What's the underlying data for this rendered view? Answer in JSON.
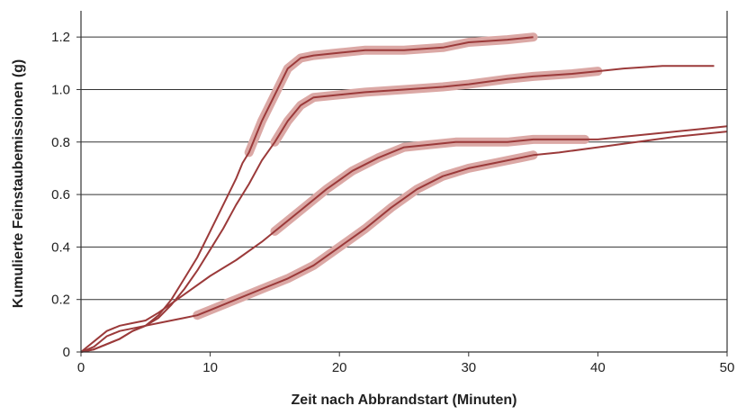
{
  "chart_data": {
    "type": "line",
    "title": "",
    "xlabel": "Zeit nach Abbrandstart (Minuten)",
    "ylabel": "Kumulierte Feinstaubemissionen (g)",
    "xlim": [
      0,
      50
    ],
    "ylim": [
      0,
      1.3
    ],
    "x_ticks": [
      0,
      10,
      20,
      30,
      40,
      50
    ],
    "y_ticks": [
      0,
      0.2,
      0.4,
      0.6,
      0.8,
      1.0,
      1.2
    ],
    "x_tick_labels": [
      "0",
      "10",
      "20",
      "30",
      "40",
      "50"
    ],
    "y_tick_labels": [
      "0",
      "0.2",
      "0.4",
      "0.6",
      "0.8",
      "1.0",
      "1.2"
    ],
    "grid": "horizontal",
    "colors": {
      "line": "#9b3a3a",
      "highlight": "#dba8a5",
      "grid": "#333333",
      "axis": "#333333"
    },
    "series": [
      {
        "x": [
          0,
          1,
          2,
          3,
          4,
          5,
          6,
          7,
          8,
          9,
          10,
          11,
          12,
          12.5,
          13,
          14,
          15,
          16,
          17,
          18,
          20,
          22,
          25,
          28,
          30,
          33,
          35
        ],
        "y": [
          0,
          0.01,
          0.03,
          0.05,
          0.08,
          0.1,
          0.14,
          0.2,
          0.28,
          0.36,
          0.46,
          0.56,
          0.66,
          0.72,
          0.76,
          0.88,
          0.98,
          1.08,
          1.12,
          1.13,
          1.14,
          1.15,
          1.15,
          1.16,
          1.18,
          1.19,
          1.2
        ],
        "highlight_range": [
          13,
          35
        ]
      },
      {
        "x": [
          0,
          1,
          2,
          3,
          4,
          5,
          6,
          7,
          8,
          9,
          10,
          11,
          12,
          13,
          14,
          15,
          16,
          17,
          18,
          20,
          22,
          25,
          28,
          30,
          33,
          35,
          38,
          40,
          42,
          45,
          49
        ],
        "y": [
          0,
          0.01,
          0.03,
          0.05,
          0.08,
          0.1,
          0.13,
          0.18,
          0.24,
          0.31,
          0.39,
          0.47,
          0.56,
          0.64,
          0.73,
          0.8,
          0.88,
          0.94,
          0.97,
          0.98,
          0.99,
          1.0,
          1.01,
          1.02,
          1.04,
          1.05,
          1.06,
          1.07,
          1.08,
          1.09,
          1.09
        ],
        "highlight_range": [
          15,
          41
        ]
      },
      {
        "x": [
          0,
          1,
          2,
          3,
          4,
          5,
          6,
          8,
          10,
          12,
          14,
          15,
          17,
          19,
          21,
          23,
          25,
          27,
          29,
          31,
          33,
          35,
          37,
          39,
          40,
          42,
          44,
          46,
          48,
          50
        ],
        "y": [
          0,
          0.04,
          0.08,
          0.1,
          0.11,
          0.12,
          0.15,
          0.22,
          0.29,
          0.35,
          0.42,
          0.46,
          0.54,
          0.62,
          0.69,
          0.74,
          0.78,
          0.79,
          0.8,
          0.8,
          0.8,
          0.81,
          0.81,
          0.81,
          0.81,
          0.82,
          0.83,
          0.84,
          0.85,
          0.86
        ],
        "highlight_range": [
          15,
          39
        ]
      },
      {
        "x": [
          0,
          1,
          2,
          3,
          4,
          5,
          6,
          7,
          8,
          9,
          10,
          12,
          14,
          16,
          18,
          20,
          22,
          24,
          26,
          28,
          30,
          32,
          34,
          35,
          37,
          40,
          43,
          46,
          50
        ],
        "y": [
          0,
          0.02,
          0.06,
          0.08,
          0.09,
          0.1,
          0.11,
          0.12,
          0.13,
          0.14,
          0.16,
          0.2,
          0.24,
          0.28,
          0.33,
          0.4,
          0.47,
          0.55,
          0.62,
          0.67,
          0.7,
          0.72,
          0.74,
          0.75,
          0.76,
          0.78,
          0.8,
          0.82,
          0.84
        ],
        "highlight_range": [
          9,
          36
        ]
      }
    ]
  }
}
